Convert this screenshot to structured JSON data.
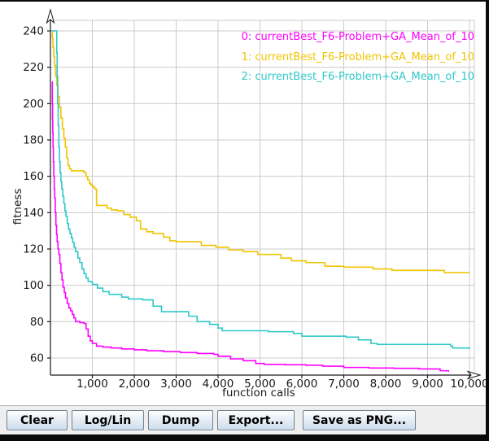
{
  "toolbar": {
    "buttons": [
      {
        "label": "Clear"
      },
      {
        "label": "Log/Lin"
      },
      {
        "label": "Dump"
      },
      {
        "label": "Export..."
      },
      {
        "label": "Save as PNG..."
      }
    ]
  },
  "colors": {
    "grid": "#cbcbcb",
    "axis": "#1a1a1a",
    "plot_background": "#ffffff",
    "panel_background": "#eeeeee"
  },
  "chart_data": {
    "type": "line",
    "title": "",
    "xlabel": "function calls",
    "ylabel": "fitness",
    "xlim": [
      0,
      10000
    ],
    "ylim": [
      50,
      246
    ],
    "grid": true,
    "legend_position": "top-right",
    "interpolation": "step-after",
    "x_ticks": [
      {
        "value": 1000,
        "label": "1,000"
      },
      {
        "value": 2000,
        "label": "2,000"
      },
      {
        "value": 3000,
        "label": "3,000"
      },
      {
        "value": 4000,
        "label": "4,000"
      },
      {
        "value": 5000,
        "label": "5,000"
      },
      {
        "value": 6000,
        "label": "6,000"
      },
      {
        "value": 7000,
        "label": "7,000"
      },
      {
        "value": 8000,
        "label": "8,000"
      },
      {
        "value": 9000,
        "label": "9,000"
      },
      {
        "value": 10000,
        "label": "10,000"
      }
    ],
    "y_ticks": [
      {
        "value": 240,
        "label": "240"
      },
      {
        "value": 220,
        "label": "220"
      },
      {
        "value": 200,
        "label": "200"
      },
      {
        "value": 180,
        "label": "180"
      },
      {
        "value": 160,
        "label": "160"
      },
      {
        "value": 140,
        "label": "140"
      },
      {
        "value": 120,
        "label": "120"
      },
      {
        "value": 100,
        "label": "100"
      },
      {
        "value": 80,
        "label": "80"
      },
      {
        "value": 60,
        "label": "60"
      }
    ],
    "series": [
      {
        "name": "0: currentBest_F6-Problem+GA_Mean_of_10",
        "color": "#ff00ff",
        "points": [
          [
            40,
            212
          ],
          [
            45,
            200
          ],
          [
            50,
            191
          ],
          [
            55,
            184
          ],
          [
            62,
            176
          ],
          [
            70,
            168
          ],
          [
            80,
            160
          ],
          [
            90,
            153
          ],
          [
            100,
            148
          ],
          [
            115,
            140
          ],
          [
            130,
            133
          ],
          [
            145,
            128
          ],
          [
            160,
            124
          ],
          [
            180,
            120
          ],
          [
            200,
            117
          ],
          [
            225,
            112
          ],
          [
            250,
            107
          ],
          [
            275,
            103
          ],
          [
            300,
            99
          ],
          [
            330,
            96
          ],
          [
            360,
            93
          ],
          [
            400,
            90
          ],
          [
            440,
            87.5
          ],
          [
            480,
            86
          ],
          [
            520,
            84
          ],
          [
            560,
            82
          ],
          [
            600,
            80
          ],
          [
            700,
            79.5
          ],
          [
            800,
            79
          ],
          [
            850,
            76
          ],
          [
            900,
            72
          ],
          [
            950,
            69.5
          ],
          [
            1000,
            68
          ],
          [
            1100,
            66.5
          ],
          [
            1250,
            66
          ],
          [
            1450,
            65.5
          ],
          [
            1700,
            65
          ],
          [
            2000,
            64.5
          ],
          [
            2300,
            64
          ],
          [
            2700,
            63.5
          ],
          [
            3100,
            63
          ],
          [
            3500,
            62.5
          ],
          [
            3900,
            62
          ],
          [
            4000,
            61
          ],
          [
            4300,
            59.5
          ],
          [
            4600,
            58.5
          ],
          [
            4900,
            57
          ],
          [
            5100,
            56.5
          ],
          [
            5600,
            56.3
          ],
          [
            6100,
            56
          ],
          [
            6500,
            55.5
          ],
          [
            7000,
            54.8
          ],
          [
            7600,
            54.5
          ],
          [
            8200,
            54.3
          ],
          [
            8800,
            54
          ],
          [
            9300,
            53
          ],
          [
            9500,
            52.5
          ]
        ]
      },
      {
        "name": "1: currentBest_F6-Problem+GA_Mean_of_10",
        "color": "#f0c400",
        "points": [
          [
            30,
            240
          ],
          [
            45,
            236
          ],
          [
            60,
            231
          ],
          [
            80,
            226
          ],
          [
            100,
            221
          ],
          [
            125,
            215
          ],
          [
            150,
            210
          ],
          [
            180,
            204
          ],
          [
            215,
            198
          ],
          [
            250,
            192
          ],
          [
            285,
            186
          ],
          [
            320,
            181
          ],
          [
            355,
            176
          ],
          [
            390,
            170
          ],
          [
            420,
            166
          ],
          [
            455,
            164
          ],
          [
            500,
            163
          ],
          [
            700,
            163
          ],
          [
            800,
            162
          ],
          [
            850,
            160
          ],
          [
            890,
            158
          ],
          [
            930,
            156
          ],
          [
            970,
            155
          ],
          [
            1010,
            154
          ],
          [
            1060,
            153
          ],
          [
            1100,
            144
          ],
          [
            1250,
            144
          ],
          [
            1350,
            142.5
          ],
          [
            1450,
            141.5
          ],
          [
            1600,
            141
          ],
          [
            1750,
            139
          ],
          [
            1900,
            137.5
          ],
          [
            2050,
            135.5
          ],
          [
            2150,
            131
          ],
          [
            2300,
            129.5
          ],
          [
            2450,
            128.5
          ],
          [
            2700,
            126.5
          ],
          [
            2850,
            124.5
          ],
          [
            3000,
            124
          ],
          [
            3600,
            122
          ],
          [
            3950,
            121
          ],
          [
            4250,
            119.5
          ],
          [
            4600,
            118.5
          ],
          [
            4950,
            117
          ],
          [
            5500,
            115
          ],
          [
            5750,
            113.5
          ],
          [
            6100,
            112.5
          ],
          [
            6550,
            110.5
          ],
          [
            7000,
            110
          ],
          [
            7700,
            109
          ],
          [
            8150,
            108.2
          ],
          [
            9400,
            107
          ],
          [
            10000,
            107
          ]
        ]
      },
      {
        "name": "2: currentBest_F6-Problem+GA_Mean_of_10",
        "color": "#2fc8c8",
        "points": [
          [
            30,
            240
          ],
          [
            130,
            240
          ],
          [
            150,
            228
          ],
          [
            160,
            215
          ],
          [
            172,
            200
          ],
          [
            185,
            188
          ],
          [
            200,
            176
          ],
          [
            215,
            168
          ],
          [
            230,
            162
          ],
          [
            250,
            157
          ],
          [
            270,
            153
          ],
          [
            295,
            149
          ],
          [
            320,
            145
          ],
          [
            345,
            141
          ],
          [
            370,
            138
          ],
          [
            400,
            134
          ],
          [
            430,
            131
          ],
          [
            465,
            128.5
          ],
          [
            500,
            126
          ],
          [
            530,
            123.5
          ],
          [
            565,
            121
          ],
          [
            600,
            118.5
          ],
          [
            655,
            115
          ],
          [
            700,
            112.5
          ],
          [
            755,
            109
          ],
          [
            800,
            106.5
          ],
          [
            850,
            104
          ],
          [
            900,
            102
          ],
          [
            1000,
            100.5
          ],
          [
            1120,
            98.5
          ],
          [
            1250,
            96.5
          ],
          [
            1400,
            95
          ],
          [
            1700,
            93.5
          ],
          [
            1860,
            92.5
          ],
          [
            2200,
            92
          ],
          [
            2450,
            88.5
          ],
          [
            2650,
            85.5
          ],
          [
            3300,
            83
          ],
          [
            3500,
            80
          ],
          [
            3800,
            78.5
          ],
          [
            4000,
            76.5
          ],
          [
            4100,
            75
          ],
          [
            5200,
            74.5
          ],
          [
            5800,
            73.5
          ],
          [
            6000,
            72
          ],
          [
            7050,
            71.5
          ],
          [
            7350,
            70
          ],
          [
            7650,
            68
          ],
          [
            7800,
            67.5
          ],
          [
            9550,
            66.5
          ],
          [
            9600,
            65.5
          ],
          [
            10000,
            65
          ]
        ]
      }
    ]
  }
}
